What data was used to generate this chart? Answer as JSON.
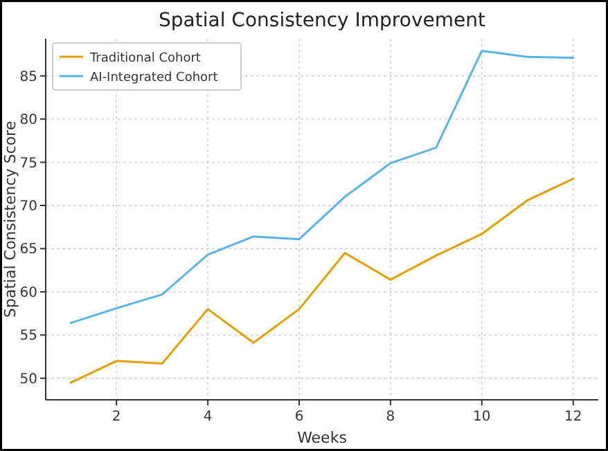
{
  "chart_data": {
    "type": "line",
    "title": "Spatial Consistency Improvement",
    "xlabel": "Weeks",
    "ylabel": "Spatial Consistency Score",
    "x": [
      1,
      2,
      3,
      4,
      5,
      6,
      7,
      8,
      9,
      10,
      11,
      12
    ],
    "series": [
      {
        "name": "Traditional Cohort",
        "color": "#e69f00",
        "values": [
          49.5,
          52.0,
          51.7,
          58.0,
          54.1,
          58.0,
          64.5,
          61.4,
          64.2,
          66.7,
          70.6,
          73.1
        ]
      },
      {
        "name": "AI-Integrated Cohort",
        "color": "#56b4e9",
        "values": [
          56.4,
          58.1,
          59.7,
          64.3,
          66.4,
          66.1,
          71.0,
          74.9,
          76.7,
          87.9,
          87.2,
          87.1
        ]
      }
    ],
    "xlim": [
      0.45,
      12.55
    ],
    "xticks": [
      2,
      4,
      6,
      8,
      10,
      12
    ],
    "ylim": [
      47.5,
      89.3
    ],
    "yticks": [
      50,
      55,
      60,
      65,
      70,
      75,
      80,
      85
    ],
    "grid": true,
    "legend": "top left",
    "line_style": "solid",
    "marker": "none"
  }
}
